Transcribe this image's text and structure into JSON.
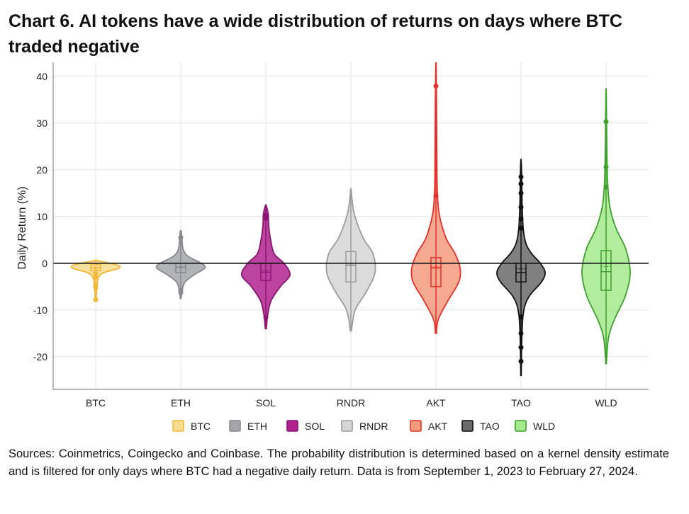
{
  "title": "Chart 6. AI tokens have a wide distribution of returns on days where BTC traded negative",
  "source_note": "Sources: Coinmetrics, Coingecko and Coinbase. The probability distribution is determined based on a kernel density estimate and is filtered for only days where BTC had a negative daily return. Data is from September 1, 2023 to February 27, 2024.",
  "chart_data": {
    "type": "violin",
    "ylabel": "Daily Return (%)",
    "xlabel": "",
    "ylim": [
      -27,
      43
    ],
    "yticks": [
      -20,
      -10,
      0,
      10,
      20,
      30,
      40
    ],
    "grid": true,
    "zero_line": true,
    "legend_position": "bottom",
    "categories": [
      "BTC",
      "ETH",
      "SOL",
      "RNDR",
      "AKT",
      "TAO",
      "WLD"
    ],
    "series": [
      {
        "name": "BTC",
        "fill": "#f6dc8c",
        "stroke": "#f2b83a",
        "min": -7.8,
        "q1": -1.6,
        "median": -0.9,
        "mean": -1.2,
        "q3": -0.3,
        "max": 0.6,
        "outliers": [
          -2.2,
          -3.0,
          -4.6,
          -5.2,
          -7.8
        ],
        "profile": [
          [
            -7.8,
            0.02
          ],
          [
            -5,
            0.05
          ],
          [
            -3,
            0.12
          ],
          [
            -2,
            0.35
          ],
          [
            -1.2,
            0.9
          ],
          [
            -0.6,
            1.0
          ],
          [
            0,
            0.6
          ],
          [
            0.6,
            0.02
          ]
        ]
      },
      {
        "name": "ETH",
        "fill": "#a3a6aa",
        "stroke": "#868a8e",
        "min": -7.5,
        "q1": -2.0,
        "median": -0.8,
        "mean": -1.0,
        "q3": 0.0,
        "max": 6.8,
        "outliers": [
          5.5,
          -5.8,
          -6.3
        ],
        "profile": [
          [
            -7.5,
            0.02
          ],
          [
            -6,
            0.05
          ],
          [
            -4,
            0.18
          ],
          [
            -2.5,
            0.55
          ],
          [
            -1,
            1.0
          ],
          [
            0,
            0.85
          ],
          [
            1.5,
            0.3
          ],
          [
            3,
            0.1
          ],
          [
            5,
            0.05
          ],
          [
            6.8,
            0.02
          ]
        ]
      },
      {
        "name": "SOL",
        "fill": "#b0228f",
        "stroke": "#8a1572",
        "min": -14.0,
        "q1": -3.7,
        "median": -1.9,
        "mean": -1.5,
        "q3": 0.0,
        "max": 12.3,
        "outliers": [
          9.6,
          10.3,
          -11.6
        ],
        "profile": [
          [
            -14,
            0.02
          ],
          [
            -11,
            0.08
          ],
          [
            -8,
            0.22
          ],
          [
            -5,
            0.6
          ],
          [
            -2.5,
            1.0
          ],
          [
            0,
            0.75
          ],
          [
            2,
            0.35
          ],
          [
            5,
            0.2
          ],
          [
            8,
            0.12
          ],
          [
            10.5,
            0.1
          ],
          [
            12.3,
            0.02
          ]
        ]
      },
      {
        "name": "RNDR",
        "fill": "#d6d6d6",
        "stroke": "#9b9b9b",
        "min": -14.5,
        "q1": -4.0,
        "median": -0.5,
        "mean": -0.3,
        "q3": 2.5,
        "max": 15.8,
        "outliers": [],
        "profile": [
          [
            -14.5,
            0.02
          ],
          [
            -10,
            0.18
          ],
          [
            -6,
            0.65
          ],
          [
            -2,
            1.0
          ],
          [
            2,
            0.92
          ],
          [
            5,
            0.55
          ],
          [
            8,
            0.3
          ],
          [
            11,
            0.12
          ],
          [
            14,
            0.04
          ],
          [
            15.8,
            0.01
          ]
        ]
      },
      {
        "name": "AKT",
        "fill": "#f29a7c",
        "stroke": "#e4312a",
        "min": -15.0,
        "q1": -5.0,
        "median": -1.0,
        "mean": -0.8,
        "q3": 1.2,
        "max": 41.9,
        "outliers": [
          37.9,
          14.4
        ],
        "profile": [
          [
            -15,
            0.02
          ],
          [
            -12,
            0.1
          ],
          [
            -8,
            0.5
          ],
          [
            -4,
            0.95
          ],
          [
            -1,
            1.0
          ],
          [
            2,
            0.8
          ],
          [
            5,
            0.45
          ],
          [
            8,
            0.25
          ],
          [
            11,
            0.12
          ],
          [
            15,
            0.06
          ],
          [
            20,
            0.04
          ],
          [
            30,
            0.03
          ],
          [
            41.9,
            0.01
          ]
        ]
      },
      {
        "name": "TAO",
        "fill": "#6a6a6a",
        "stroke": "#111111",
        "min": -24.0,
        "q1": -4.0,
        "median": -2.0,
        "mean": -1.2,
        "q3": 0.0,
        "max": 21.8,
        "outliers": [
          7.5,
          9.5,
          12.0,
          15.0,
          17.0,
          18.5,
          -11.5,
          -15.0,
          -18.0,
          -21.0
        ],
        "profile": [
          [
            -24,
            0.01
          ],
          [
            -15,
            0.04
          ],
          [
            -10,
            0.12
          ],
          [
            -7,
            0.35
          ],
          [
            -4,
            0.85
          ],
          [
            -2,
            1.0
          ],
          [
            0,
            0.8
          ],
          [
            2,
            0.45
          ],
          [
            4,
            0.22
          ],
          [
            7,
            0.1
          ],
          [
            12,
            0.05
          ],
          [
            18,
            0.03
          ],
          [
            21.8,
            0.01
          ]
        ]
      },
      {
        "name": "WLD",
        "fill": "#a5ea8c",
        "stroke": "#3ea12d",
        "min": -21.5,
        "q1": -5.8,
        "median": -1.8,
        "mean": -0.7,
        "q3": 2.7,
        "max": 36.0,
        "outliers": [
          30.3,
          20.6,
          16.3
        ],
        "profile": [
          [
            -21.5,
            0.01
          ],
          [
            -16,
            0.1
          ],
          [
            -12,
            0.35
          ],
          [
            -7,
            0.8
          ],
          [
            -2,
            1.0
          ],
          [
            3,
            0.82
          ],
          [
            7,
            0.45
          ],
          [
            10,
            0.25
          ],
          [
            13,
            0.13
          ],
          [
            18,
            0.06
          ],
          [
            25,
            0.03
          ],
          [
            36,
            0.01
          ]
        ]
      }
    ]
  }
}
